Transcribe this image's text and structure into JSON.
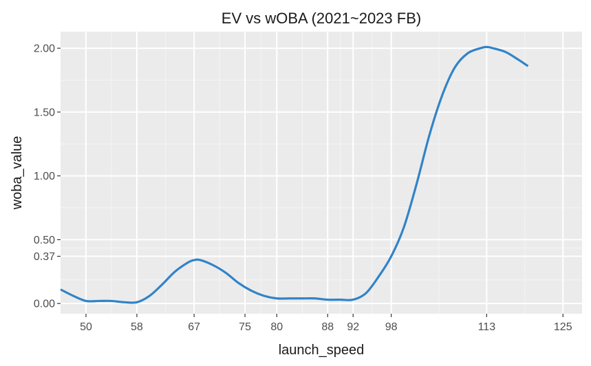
{
  "chart_data": {
    "type": "line",
    "title": "EV vs wOBA (2021~2023 FB)",
    "xlabel": "launch_speed",
    "ylabel": "woba_value",
    "xlim": [
      46,
      128
    ],
    "ylim": [
      -0.08,
      2.13
    ],
    "x_ticks": [
      50,
      58,
      67,
      75,
      80,
      88,
      92,
      98,
      113,
      125
    ],
    "y_ticks": [
      0.0,
      0.37,
      0.5,
      1.0,
      1.5,
      2.0
    ],
    "x_tick_labels": [
      "50",
      "58",
      "67",
      "75",
      "80",
      "88",
      "92",
      "98",
      "113",
      "125"
    ],
    "y_tick_labels": [
      "0.00",
      "0.37",
      "0.50",
      "1.00",
      "1.50",
      "2.00"
    ],
    "grid": true,
    "series": [
      {
        "color": "#3183c8",
        "x": [
          46,
          48,
          50,
          52,
          54,
          56,
          58,
          60,
          62,
          64,
          66,
          67,
          68,
          70,
          72,
          74,
          76,
          78,
          80,
          82,
          84,
          86,
          88,
          90,
          92,
          94,
          96,
          98,
          100,
          102,
          104,
          106,
          108,
          110,
          112,
          113,
          114,
          116,
          118,
          119.5
        ],
        "y": [
          0.11,
          0.06,
          0.02,
          0.02,
          0.02,
          0.01,
          0.01,
          0.06,
          0.15,
          0.25,
          0.32,
          0.34,
          0.34,
          0.3,
          0.24,
          0.16,
          0.1,
          0.06,
          0.04,
          0.04,
          0.04,
          0.04,
          0.03,
          0.03,
          0.03,
          0.08,
          0.21,
          0.37,
          0.6,
          0.94,
          1.32,
          1.63,
          1.85,
          1.96,
          2.0,
          2.01,
          2.0,
          1.97,
          1.91,
          1.86
        ]
      }
    ]
  }
}
